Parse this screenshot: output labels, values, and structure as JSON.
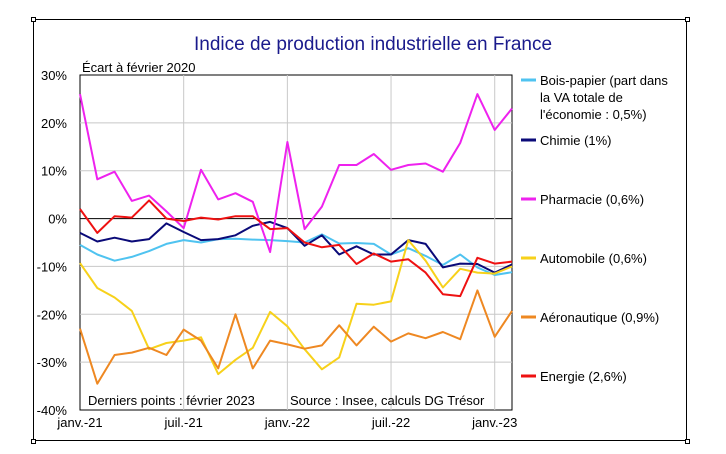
{
  "chart_data": {
    "type": "line",
    "title": "Indice de production industrielle en France",
    "subtitle": "Écart à février 2020",
    "ylim": [
      -40,
      30
    ],
    "yticks": [
      -40,
      -30,
      -20,
      -10,
      0,
      10,
      20,
      30
    ],
    "ytick_labels": [
      "-40%",
      "-30%",
      "-20%",
      "-10%",
      "0%",
      "10%",
      "20%",
      "30%"
    ],
    "x": [
      "janv.-21",
      "févr.-21",
      "mars-21",
      "avr.-21",
      "mai-21",
      "juin-21",
      "juil.-21",
      "août-21",
      "sept.-21",
      "oct.-21",
      "nov.-21",
      "déc.-21",
      "janv.-22",
      "févr.-22",
      "mars-22",
      "avr.-22",
      "mai-22",
      "juin-22",
      "juil.-22",
      "août-22",
      "sept.-22",
      "oct.-22",
      "nov.-22",
      "déc.-22",
      "janv.-23",
      "févr.-23"
    ],
    "xtick_labels": [
      "janv.-21",
      "juil.-21",
      "janv.-22",
      "juil.-22",
      "janv.-23"
    ],
    "xtick_index": [
      0,
      6,
      12,
      18,
      24
    ],
    "grid": true,
    "legend_position": "right",
    "note_left": "Derniers points : février 2023",
    "note_right": "Source : Insee, calculs DG Trésor",
    "series": [
      {
        "name": "Bois-papier (part dans la VA totale de l'économie : 0,5%)",
        "legend_lines": [
          "Bois-papier (part dans",
          "la VA totale de",
          "l'économie : 0,5%)"
        ],
        "color": "#4fc3f0",
        "values": [
          -5.5,
          -7.5,
          -8.8,
          -8,
          -6.8,
          -5.3,
          -4.5,
          -5,
          -4.3,
          -4.2,
          -4.4,
          -4.5,
          -4.7,
          -5,
          -3.3,
          -5.2,
          -5.1,
          -5.3,
          -7.5,
          -6.2,
          -7.8,
          -9.7,
          -7.5,
          -10.2,
          -11.8,
          -11.2
        ]
      },
      {
        "name": "Chimie (1%)",
        "legend_lines": [
          "Chimie (1%)"
        ],
        "color": "#0a0a78",
        "values": [
          -3,
          -4.8,
          -4,
          -4.8,
          -4.3,
          -1,
          -2.8,
          -4.5,
          -4.3,
          -3.5,
          -1.5,
          -0.7,
          -2,
          -5.7,
          -3.5,
          -7.5,
          -5.8,
          -7.5,
          -7.5,
          -4.5,
          -5.3,
          -10.2,
          -9.4,
          -9.5,
          -11.3,
          -9.6
        ]
      },
      {
        "name": "Pharmacie (0,6%)",
        "legend_lines": [
          "Pharmacie (0,6%)"
        ],
        "color": "#ee22ee",
        "values": [
          26,
          8.2,
          9.8,
          3.7,
          4.8,
          1.5,
          -2,
          10.2,
          4,
          5.3,
          3.5,
          -7,
          16,
          -2.2,
          2.5,
          11.2,
          11.2,
          13.5,
          10.2,
          11.2,
          11.5,
          9.8,
          15.8,
          26,
          18.5,
          23
        ]
      },
      {
        "name": "Automobile (0,6%)",
        "legend_lines": [
          "Automobile (0,6%)"
        ],
        "color": "#f7d11a",
        "values": [
          -9.3,
          -14.5,
          -16.5,
          -19.3,
          -27.3,
          -26,
          -25.5,
          -24.8,
          -32.5,
          -29.5,
          -27,
          -19.5,
          -22.5,
          -27.3,
          -31.5,
          -29,
          -17.8,
          -18,
          -17.3,
          -4.5,
          -8.8,
          -14.4,
          -10.5,
          -11.3,
          -11.5,
          -10
        ]
      },
      {
        "name": "Aéronautique (0,9%)",
        "legend_lines": [
          "Aéronautique (0,9%)"
        ],
        "color": "#ee8822",
        "values": [
          -23,
          -34.5,
          -28.5,
          -28,
          -27,
          -28.5,
          -23.2,
          -25.5,
          -31.3,
          -20,
          -31.3,
          -25.5,
          -26.3,
          -27.2,
          -26.5,
          -22.3,
          -26.5,
          -22.6,
          -25.7,
          -24,
          -25,
          -23.7,
          -25.2,
          -15,
          -24.7,
          -19.3
        ]
      },
      {
        "name": "Energie (2,6%)",
        "legend_lines": [
          "Energie (2,6%)"
        ],
        "color": "#ee1111",
        "values": [
          2,
          -3,
          0.5,
          0.2,
          3.8,
          0,
          -0.5,
          0.2,
          -0.2,
          0.5,
          0.5,
          -2.2,
          -2,
          -5,
          -6,
          -5.5,
          -9.5,
          -7.3,
          -9,
          -8.5,
          -11.3,
          -15.8,
          -16.2,
          -8.2,
          -9.4,
          -9
        ]
      }
    ]
  }
}
